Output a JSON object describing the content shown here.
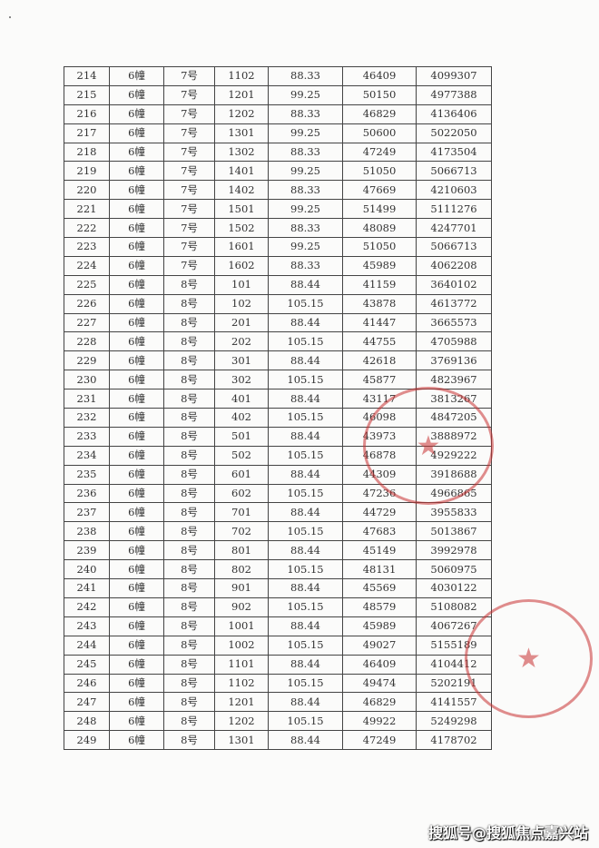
{
  "rows": [
    [
      "214",
      "6幢",
      "7号",
      "1102",
      "88.33",
      "46409",
      "4099307"
    ],
    [
      "215",
      "6幢",
      "7号",
      "1201",
      "99.25",
      "50150",
      "4977388"
    ],
    [
      "216",
      "6幢",
      "7号",
      "1202",
      "88.33",
      "46829",
      "4136406"
    ],
    [
      "217",
      "6幢",
      "7号",
      "1301",
      "99.25",
      "50600",
      "5022050"
    ],
    [
      "218",
      "6幢",
      "7号",
      "1302",
      "88.33",
      "47249",
      "4173504"
    ],
    [
      "219",
      "6幢",
      "7号",
      "1401",
      "99.25",
      "51050",
      "5066713"
    ],
    [
      "220",
      "6幢",
      "7号",
      "1402",
      "88.33",
      "47669",
      "4210603"
    ],
    [
      "221",
      "6幢",
      "7号",
      "1501",
      "99.25",
      "51499",
      "5111276"
    ],
    [
      "222",
      "6幢",
      "7号",
      "1502",
      "88.33",
      "48089",
      "4247701"
    ],
    [
      "223",
      "6幢",
      "7号",
      "1601",
      "99.25",
      "51050",
      "5066713"
    ],
    [
      "224",
      "6幢",
      "7号",
      "1602",
      "88.33",
      "45989",
      "4062208"
    ],
    [
      "225",
      "6幢",
      "8号",
      "101",
      "88.44",
      "41159",
      "3640102"
    ],
    [
      "226",
      "6幢",
      "8号",
      "102",
      "105.15",
      "43878",
      "4613772"
    ],
    [
      "227",
      "6幢",
      "8号",
      "201",
      "88.44",
      "41447",
      "3665573"
    ],
    [
      "228",
      "6幢",
      "8号",
      "202",
      "105.15",
      "44755",
      "4705988"
    ],
    [
      "229",
      "6幢",
      "8号",
      "301",
      "88.44",
      "42618",
      "3769136"
    ],
    [
      "230",
      "6幢",
      "8号",
      "302",
      "105.15",
      "45877",
      "4823967"
    ],
    [
      "231",
      "6幢",
      "8号",
      "401",
      "88.44",
      "43117",
      "3813267"
    ],
    [
      "232",
      "6幢",
      "8号",
      "402",
      "105.15",
      "46098",
      "4847205"
    ],
    [
      "233",
      "6幢",
      "8号",
      "501",
      "88.44",
      "43973",
      "3888972"
    ],
    [
      "234",
      "6幢",
      "8号",
      "502",
      "105.15",
      "46878",
      "4929222"
    ],
    [
      "235",
      "6幢",
      "8号",
      "601",
      "88.44",
      "44309",
      "3918688"
    ],
    [
      "236",
      "6幢",
      "8号",
      "602",
      "105.15",
      "47236",
      "4966865"
    ],
    [
      "237",
      "6幢",
      "8号",
      "701",
      "88.44",
      "44729",
      "3955833"
    ],
    [
      "238",
      "6幢",
      "8号",
      "702",
      "105.15",
      "47683",
      "5013867"
    ],
    [
      "239",
      "6幢",
      "8号",
      "801",
      "88.44",
      "45149",
      "3992978"
    ],
    [
      "240",
      "6幢",
      "8号",
      "802",
      "105.15",
      "48131",
      "5060975"
    ],
    [
      "241",
      "6幢",
      "8号",
      "901",
      "88.44",
      "45569",
      "4030122"
    ],
    [
      "242",
      "6幢",
      "8号",
      "902",
      "105.15",
      "48579",
      "5108082"
    ],
    [
      "243",
      "6幢",
      "8号",
      "1001",
      "88.44",
      "45989",
      "4067267"
    ],
    [
      "244",
      "6幢",
      "8号",
      "1002",
      "105.15",
      "49027",
      "5155189"
    ],
    [
      "245",
      "6幢",
      "8号",
      "1101",
      "88.44",
      "46409",
      "4104412"
    ],
    [
      "246",
      "6幢",
      "8号",
      "1102",
      "105.15",
      "49474",
      "5202191"
    ],
    [
      "247",
      "6幢",
      "8号",
      "1201",
      "88.44",
      "46829",
      "4141557"
    ],
    [
      "248",
      "6幢",
      "8号",
      "1202",
      "105.15",
      "49922",
      "5249298"
    ],
    [
      "249",
      "6幢",
      "8号",
      "1301",
      "88.44",
      "47249",
      "4178702"
    ]
  ],
  "stamp_color": "#c83232",
  "watermark": "搜狐号@搜狐焦点嘉兴站"
}
